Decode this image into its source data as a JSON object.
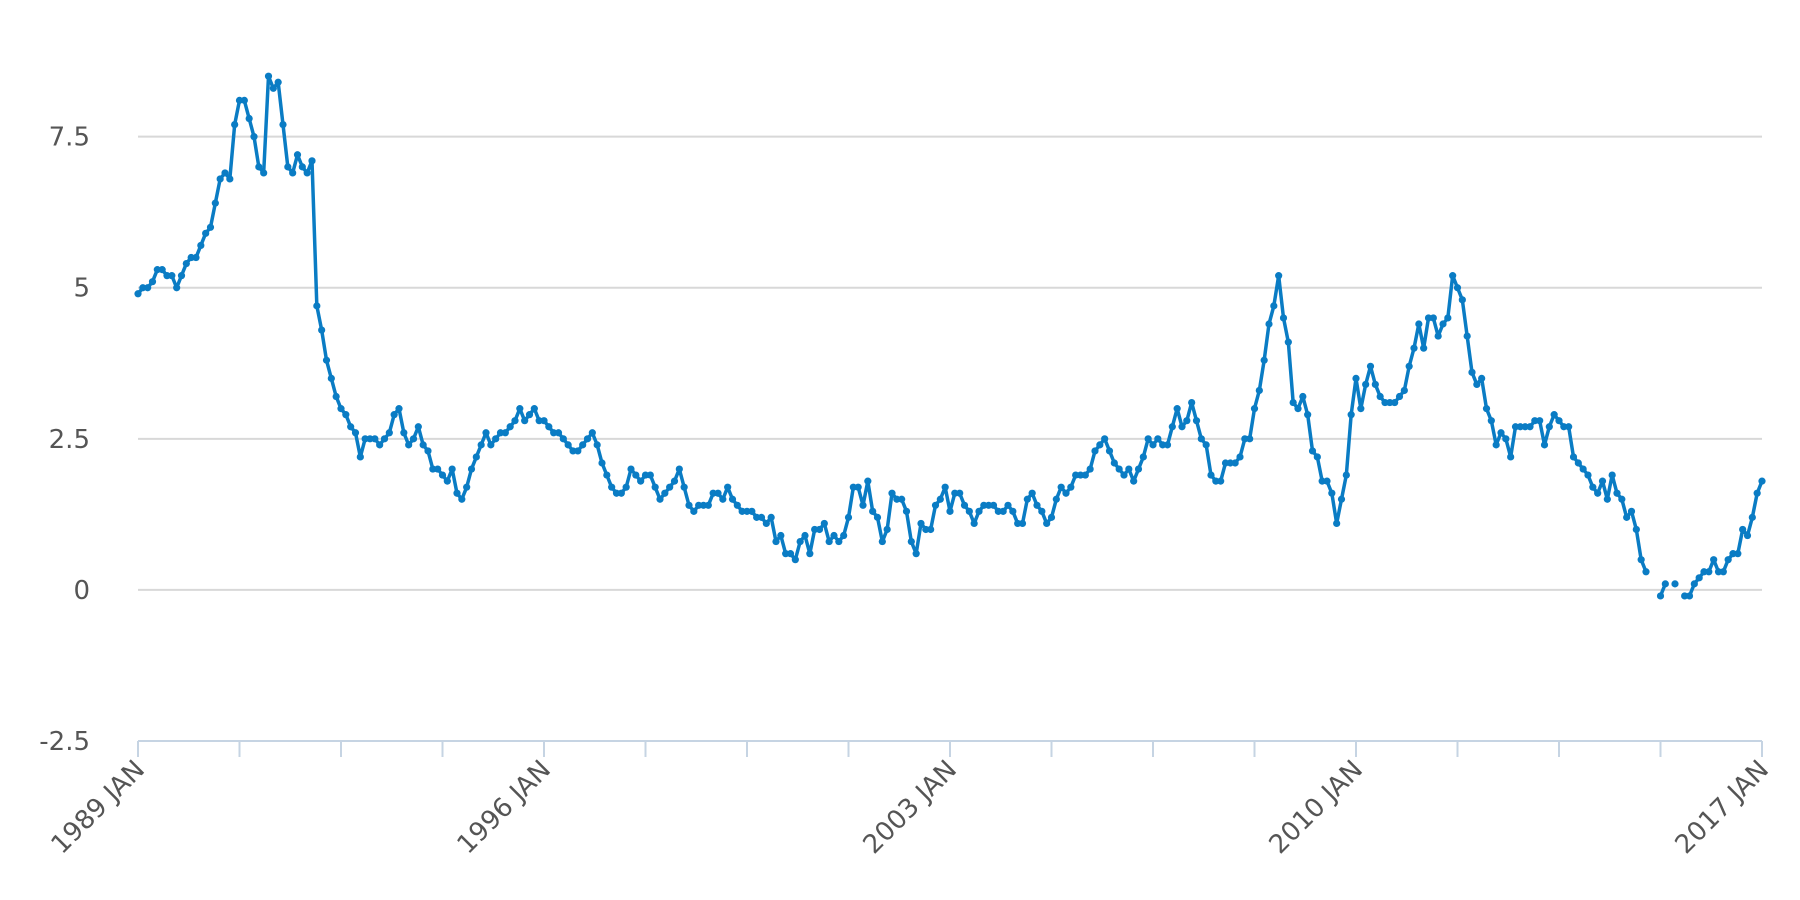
{
  "chart_data": {
    "type": "line",
    "categories": [
      "1989 JAN",
      null,
      null,
      null,
      null,
      null,
      null,
      null,
      null,
      null,
      null,
      null,
      null,
      null,
      null,
      null,
      null,
      null,
      null,
      null,
      null,
      null,
      null,
      null,
      null,
      null,
      null,
      null,
      null,
      null,
      null,
      null,
      null,
      null,
      null,
      null,
      null,
      null,
      null,
      null,
      null,
      null,
      null,
      null,
      null,
      null,
      null,
      null,
      null,
      null,
      null,
      null,
      null,
      null,
      null,
      null,
      null,
      null,
      null,
      null,
      null,
      null,
      null,
      null,
      null,
      null,
      null,
      null,
      null,
      null,
      null,
      null,
      null,
      null,
      null,
      null,
      null,
      null,
      null,
      null,
      null,
      null,
      null,
      null,
      "1996 JAN",
      null,
      null,
      null,
      null,
      null,
      null,
      null,
      null,
      null,
      null,
      null,
      null,
      null,
      null,
      null,
      null,
      null,
      null,
      null,
      null,
      null,
      null,
      null,
      null,
      null,
      null,
      null,
      null,
      null,
      null,
      null,
      null,
      null,
      null,
      null,
      null,
      null,
      null,
      null,
      null,
      null,
      null,
      null,
      null,
      null,
      null,
      null,
      null,
      null,
      null,
      null,
      null,
      null,
      null,
      null,
      null,
      null,
      null,
      null,
      null,
      null,
      null,
      null,
      null,
      null,
      null,
      null,
      null,
      null,
      null,
      null,
      null,
      null,
      null,
      null,
      null,
      null,
      null,
      null,
      null,
      null,
      null,
      null,
      "2003 JAN",
      null,
      null,
      null,
      null,
      null,
      null,
      null,
      null,
      null,
      null,
      null,
      null,
      null,
      null,
      null,
      null,
      null,
      null,
      null,
      null,
      null,
      null,
      null,
      null,
      null,
      null,
      null,
      null,
      null,
      null,
      null,
      null,
      null,
      null,
      null,
      null,
      null,
      null,
      null,
      null,
      null,
      null,
      null,
      null,
      null,
      null,
      null,
      null,
      null,
      null,
      null,
      null,
      null,
      null,
      null,
      null,
      null,
      null,
      null,
      null,
      null,
      null,
      null,
      null,
      null,
      null,
      null,
      null,
      null,
      null,
      null,
      null,
      null,
      null,
      null,
      null,
      null,
      null,
      null,
      null,
      null,
      null,
      null,
      "2010 JAN",
      null,
      null,
      null,
      null,
      null,
      null,
      null,
      null,
      null,
      null,
      null,
      null,
      null,
      null,
      null,
      null,
      null,
      null,
      null,
      null,
      null,
      null,
      null,
      null,
      null,
      null,
      null,
      null,
      null,
      null,
      null,
      null,
      null,
      null,
      null,
      null,
      null,
      null,
      null,
      null,
      null,
      null,
      null,
      null,
      null,
      null,
      null,
      null,
      null,
      null,
      null,
      null,
      null,
      null,
      null,
      null,
      null,
      null,
      null,
      null,
      null,
      null,
      null,
      null,
      null,
      null,
      null,
      null,
      null,
      null,
      null,
      null,
      null,
      null,
      null,
      null,
      null,
      null,
      null,
      null,
      null,
      null,
      null,
      "2017 JAN"
    ],
    "values": [
      4.9,
      5.0,
      5.0,
      5.1,
      5.3,
      5.3,
      5.2,
      5.2,
      5.0,
      5.2,
      5.4,
      5.5,
      5.5,
      5.7,
      5.9,
      6.0,
      6.4,
      6.8,
      6.9,
      6.8,
      7.7,
      8.1,
      8.1,
      7.8,
      7.5,
      7.0,
      6.9,
      8.5,
      8.3,
      8.4,
      7.7,
      7.0,
      6.9,
      7.2,
      7.0,
      6.9,
      7.1,
      4.7,
      4.3,
      3.8,
      3.5,
      3.2,
      3.0,
      2.9,
      2.7,
      2.6,
      2.2,
      2.5,
      2.5,
      2.5,
      2.4,
      2.5,
      2.6,
      2.9,
      3.0,
      2.6,
      2.4,
      2.5,
      2.7,
      2.4,
      2.3,
      2.0,
      2.0,
      1.9,
      1.8,
      2.0,
      1.6,
      1.5,
      1.7,
      2.0,
      2.2,
      2.4,
      2.6,
      2.4,
      2.5,
      2.6,
      2.6,
      2.7,
      2.8,
      3.0,
      2.8,
      2.9,
      3.0,
      2.8,
      2.8,
      2.7,
      2.6,
      2.6,
      2.5,
      2.4,
      2.3,
      2.3,
      2.4,
      2.5,
      2.6,
      2.4,
      2.1,
      1.9,
      1.7,
      1.6,
      1.6,
      1.7,
      2.0,
      1.9,
      1.8,
      1.9,
      1.9,
      1.7,
      1.5,
      1.6,
      1.7,
      1.8,
      2.0,
      1.7,
      1.4,
      1.3,
      1.4,
      1.4,
      1.4,
      1.6,
      1.6,
      1.5,
      1.7,
      1.5,
      1.4,
      1.3,
      1.3,
      1.3,
      1.2,
      1.2,
      1.1,
      1.2,
      0.8,
      0.9,
      0.6,
      0.6,
      0.5,
      0.8,
      0.9,
      0.6,
      1.0,
      1.0,
      1.1,
      0.8,
      0.9,
      0.8,
      0.9,
      1.2,
      1.7,
      1.7,
      1.4,
      1.8,
      1.3,
      1.2,
      0.8,
      1.0,
      1.6,
      1.5,
      1.5,
      1.3,
      0.8,
      0.6,
      1.1,
      1.0,
      1.0,
      1.4,
      1.5,
      1.7,
      1.3,
      1.6,
      1.6,
      1.4,
      1.3,
      1.1,
      1.3,
      1.4,
      1.4,
      1.4,
      1.3,
      1.3,
      1.4,
      1.3,
      1.1,
      1.1,
      1.5,
      1.6,
      1.4,
      1.3,
      1.1,
      1.2,
      1.5,
      1.7,
      1.6,
      1.7,
      1.9,
      1.9,
      1.9,
      2.0,
      2.3,
      2.4,
      2.5,
      2.3,
      2.1,
      2.0,
      1.9,
      2.0,
      1.8,
      2.0,
      2.2,
      2.5,
      2.4,
      2.5,
      2.4,
      2.4,
      2.7,
      3.0,
      2.7,
      2.8,
      3.1,
      2.8,
      2.5,
      2.4,
      1.9,
      1.8,
      1.8,
      2.1,
      2.1,
      2.1,
      2.2,
      2.5,
      2.5,
      3.0,
      3.3,
      3.8,
      4.4,
      4.7,
      5.2,
      4.5,
      4.1,
      3.1,
      3.0,
      3.2,
      2.9,
      2.3,
      2.2,
      1.8,
      1.8,
      1.6,
      1.1,
      1.5,
      1.9,
      2.9,
      3.5,
      3.0,
      3.4,
      3.7,
      3.4,
      3.2,
      3.1,
      3.1,
      3.1,
      3.2,
      3.3,
      3.7,
      4.0,
      4.4,
      4.0,
      4.5,
      4.5,
      4.2,
      4.4,
      4.5,
      5.2,
      5.0,
      4.8,
      4.2,
      3.6,
      3.4,
      3.5,
      3.0,
      2.8,
      2.4,
      2.6,
      2.5,
      2.2,
      2.7,
      2.7,
      2.7,
      2.7,
      2.8,
      2.8,
      2.4,
      2.7,
      2.9,
      2.8,
      2.7,
      2.7,
      2.2,
      2.1,
      2.0,
      1.9,
      1.7,
      1.6,
      1.8,
      1.5,
      1.9,
      1.6,
      1.5,
      1.2,
      1.3,
      1.0,
      0.5,
      0.3,
      null,
      null,
      -0.1,
      0.1,
      null,
      0.1,
      null,
      -0.1,
      -0.1,
      0.1,
      0.2,
      0.3,
      0.3,
      0.5,
      0.3,
      0.3,
      0.5,
      0.6,
      0.6,
      1.0,
      0.9,
      1.2,
      1.6,
      1.8
    ],
    "color": "#0a7cc4",
    "ylim": [
      -2.5,
      9
    ],
    "yticks": [
      -2.5,
      0,
      2.5,
      5,
      7.5
    ],
    "grid": true
  }
}
